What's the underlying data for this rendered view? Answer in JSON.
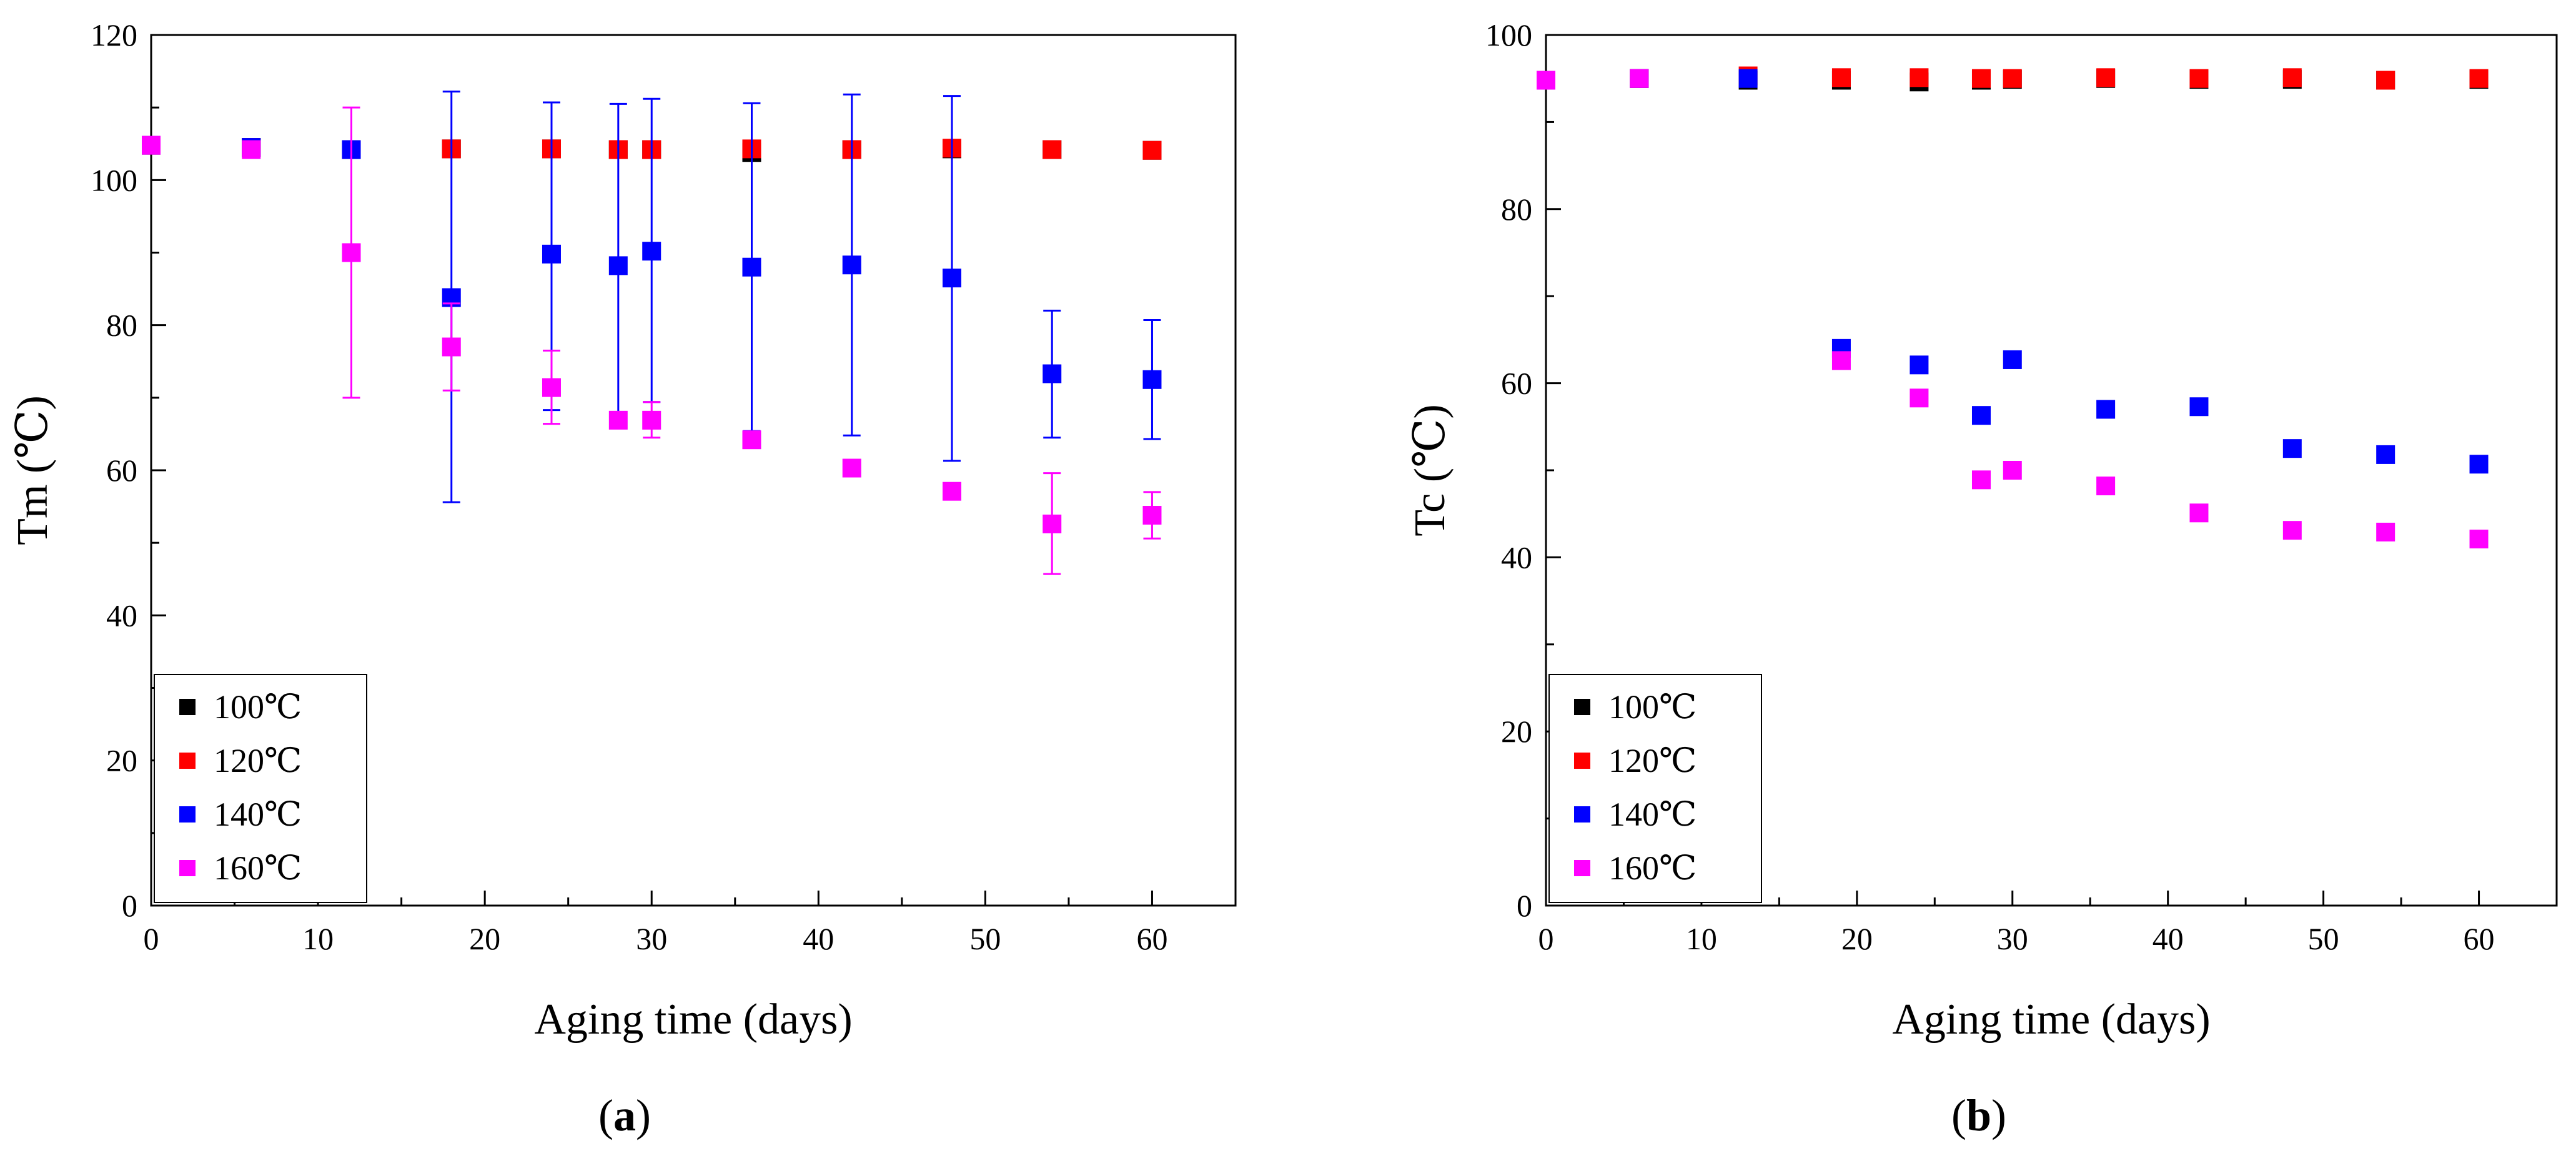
{
  "chart_data": [
    {
      "type": "scatter",
      "panel_label": "a",
      "xlabel": "Aging time (days)",
      "ylabel": "Tm (℃)",
      "xlim": [
        0,
        65
      ],
      "ylim": [
        0,
        120
      ],
      "xticks": [
        0,
        10,
        20,
        30,
        40,
        50,
        60
      ],
      "yticks": [
        0,
        20,
        40,
        60,
        80,
        100,
        120
      ],
      "legend_position": "bottom-left",
      "series": [
        {
          "name": "100℃",
          "color": "#000000",
          "points": [
            {
              "x": 0,
              "y": 104.8
            },
            {
              "x": 6,
              "y": 104.5
            },
            {
              "x": 12,
              "y": 104.2
            },
            {
              "x": 18,
              "y": 104.3
            },
            {
              "x": 24,
              "y": 104.3
            },
            {
              "x": 28,
              "y": 104.2
            },
            {
              "x": 30,
              "y": 104.2
            },
            {
              "x": 36,
              "y": 103.8
            },
            {
              "x": 42,
              "y": 104.2
            },
            {
              "x": 48,
              "y": 104.3
            },
            {
              "x": 54,
              "y": 104.2
            },
            {
              "x": 60,
              "y": 104.1
            }
          ]
        },
        {
          "name": "120℃",
          "color": "#ff0000",
          "points": [
            {
              "x": 0,
              "y": 104.8
            },
            {
              "x": 6,
              "y": 104.5
            },
            {
              "x": 12,
              "y": 104.2
            },
            {
              "x": 18,
              "y": 104.3
            },
            {
              "x": 24,
              "y": 104.3
            },
            {
              "x": 28,
              "y": 104.2
            },
            {
              "x": 30,
              "y": 104.2
            },
            {
              "x": 36,
              "y": 104.3
            },
            {
              "x": 42,
              "y": 104.2
            },
            {
              "x": 48,
              "y": 104.4
            },
            {
              "x": 54,
              "y": 104.2
            },
            {
              "x": 60,
              "y": 104.1
            }
          ]
        },
        {
          "name": "140℃",
          "color": "#0000ff",
          "points": [
            {
              "x": 0,
              "y": 104.8
            },
            {
              "x": 6,
              "y": 104.5
            },
            {
              "x": 12,
              "y": 104.2
            },
            {
              "x": 18,
              "y": 83.8,
              "lo": 55.6,
              "hi": 112.2
            },
            {
              "x": 24,
              "y": 89.8,
              "lo": 68.3,
              "hi": 110.7
            },
            {
              "x": 28,
              "y": 88.2,
              "lo": 66.9,
              "hi": 110.5
            },
            {
              "x": 30,
              "y": 90.2,
              "lo": 69.4,
              "hi": 111.2
            },
            {
              "x": 36,
              "y": 88.0,
              "lo": 65.4,
              "hi": 110.6
            },
            {
              "x": 42,
              "y": 88.3,
              "lo": 64.8,
              "hi": 111.8
            },
            {
              "x": 48,
              "y": 86.5,
              "lo": 61.3,
              "hi": 111.6
            },
            {
              "x": 54,
              "y": 73.3,
              "lo": 64.5,
              "hi": 82.0
            },
            {
              "x": 60,
              "y": 72.5,
              "lo": 64.3,
              "hi": 80.7
            }
          ]
        },
        {
          "name": "160℃",
          "color": "#ff00ff",
          "points": [
            {
              "x": 0,
              "y": 104.8
            },
            {
              "x": 6,
              "y": 104.2
            },
            {
              "x": 12,
              "y": 90.0,
              "lo": 70.0,
              "hi": 110.0
            },
            {
              "x": 18,
              "y": 77.0,
              "lo": 71.0,
              "hi": 83.0
            },
            {
              "x": 24,
              "y": 71.4,
              "lo": 66.4,
              "hi": 76.5
            },
            {
              "x": 28,
              "y": 66.9
            },
            {
              "x": 30,
              "y": 66.9,
              "lo": 64.5,
              "hi": 69.4
            },
            {
              "x": 36,
              "y": 64.2
            },
            {
              "x": 42,
              "y": 60.3
            },
            {
              "x": 48,
              "y": 57.1
            },
            {
              "x": 54,
              "y": 52.6,
              "lo": 45.7,
              "hi": 59.6
            },
            {
              "x": 60,
              "y": 53.8,
              "lo": 50.6,
              "hi": 57.0
            }
          ]
        }
      ]
    },
    {
      "type": "scatter",
      "panel_label": "b",
      "xlabel": "Aging time (days)",
      "ylabel": "Tc (℃)",
      "xlim": [
        0,
        65
      ],
      "ylim": [
        0,
        100
      ],
      "xticks": [
        0,
        10,
        20,
        30,
        40,
        50,
        60
      ],
      "yticks": [
        0,
        20,
        40,
        60,
        80,
        100
      ],
      "legend_position": "bottom-left",
      "series": [
        {
          "name": "100℃",
          "color": "#000000",
          "points": [
            {
              "x": 0,
              "y": 94.8
            },
            {
              "x": 6,
              "y": 95.0
            },
            {
              "x": 13,
              "y": 94.8
            },
            {
              "x": 19,
              "y": 94.8
            },
            {
              "x": 24,
              "y": 94.6
            },
            {
              "x": 28,
              "y": 94.8
            },
            {
              "x": 30,
              "y": 94.9
            },
            {
              "x": 36,
              "y": 95.0
            },
            {
              "x": 42,
              "y": 94.9
            },
            {
              "x": 48,
              "y": 94.9
            },
            {
              "x": 54,
              "y": 94.8
            },
            {
              "x": 60,
              "y": 94.9
            }
          ]
        },
        {
          "name": "120℃",
          "color": "#ff0000",
          "points": [
            {
              "x": 0,
              "y": 94.8
            },
            {
              "x": 6,
              "y": 95.0
            },
            {
              "x": 13,
              "y": 95.3
            },
            {
              "x": 19,
              "y": 95.1
            },
            {
              "x": 24,
              "y": 95.1
            },
            {
              "x": 28,
              "y": 95.0
            },
            {
              "x": 30,
              "y": 95.0
            },
            {
              "x": 36,
              "y": 95.1
            },
            {
              "x": 42,
              "y": 95.0
            },
            {
              "x": 48,
              "y": 95.1
            },
            {
              "x": 54,
              "y": 94.8
            },
            {
              "x": 60,
              "y": 95.0
            }
          ]
        },
        {
          "name": "140℃",
          "color": "#0000ff",
          "points": [
            {
              "x": 0,
              "y": 94.8
            },
            {
              "x": 6,
              "y": 95.0
            },
            {
              "x": 13,
              "y": 95.0
            },
            {
              "x": 19,
              "y": 64.0
            },
            {
              "x": 24,
              "y": 62.1
            },
            {
              "x": 28,
              "y": 56.3
            },
            {
              "x": 30,
              "y": 62.7
            },
            {
              "x": 36,
              "y": 57.0
            },
            {
              "x": 42,
              "y": 57.3
            },
            {
              "x": 48,
              "y": 52.5
            },
            {
              "x": 54,
              "y": 51.8
            },
            {
              "x": 60,
              "y": 50.7
            }
          ]
        },
        {
          "name": "160℃",
          "color": "#ff00ff",
          "points": [
            {
              "x": 0,
              "y": 94.8
            },
            {
              "x": 6,
              "y": 95.0
            },
            {
              "x": 19,
              "y": 62.6
            },
            {
              "x": 24,
              "y": 58.3
            },
            {
              "x": 28,
              "y": 48.9
            },
            {
              "x": 30,
              "y": 50.0
            },
            {
              "x": 36,
              "y": 48.2
            },
            {
              "x": 42,
              "y": 45.1
            },
            {
              "x": 48,
              "y": 43.1
            },
            {
              "x": 54,
              "y": 42.9
            },
            {
              "x": 60,
              "y": 42.1
            }
          ]
        }
      ]
    }
  ]
}
